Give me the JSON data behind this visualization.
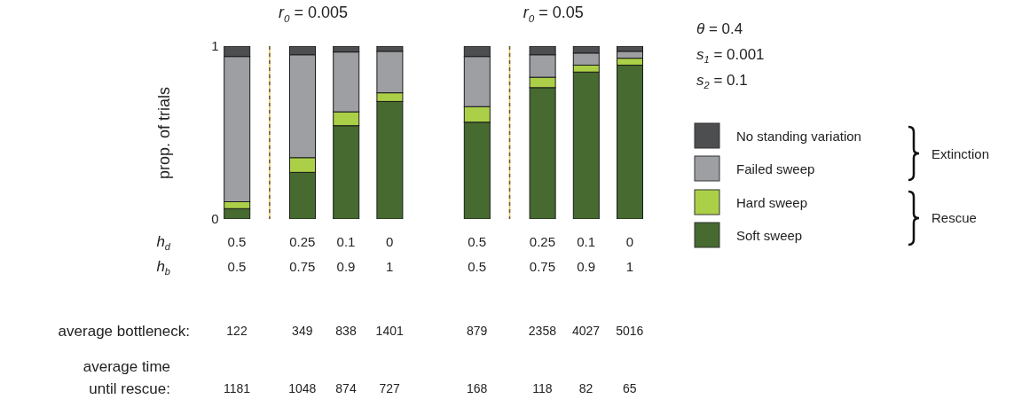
{
  "chart_data": {
    "type": "bar",
    "stacked": true,
    "ylabel": "prop. of trials",
    "ylim": [
      0,
      1
    ],
    "yticks": [
      0,
      1
    ],
    "legend": "right",
    "categories": [
      "0.5",
      null,
      null,
      "0.25",
      null,
      "0.1",
      null,
      "0",
      null,
      null,
      null,
      "0.5",
      null,
      null,
      "0.25",
      null,
      "0.1",
      null,
      "0"
    ],
    "series": [
      {
        "name": "Soft sweep",
        "color": "#466a2f",
        "values": [
          0.06,
          null,
          null,
          0.27,
          null,
          0.54,
          null,
          0.68,
          null,
          null,
          null,
          0.56,
          null,
          null,
          0.76,
          null,
          0.85,
          null,
          0.89
        ]
      },
      {
        "name": "Hard sweep",
        "color": "#abd048",
        "values": [
          0.04,
          null,
          null,
          0.085,
          null,
          0.08,
          null,
          0.05,
          null,
          null,
          null,
          0.09,
          null,
          null,
          0.06,
          null,
          0.04,
          null,
          0.04
        ]
      },
      {
        "name": "Failed sweep",
        "color": "#9d9fa2",
        "values": [
          0.84,
          null,
          null,
          0.595,
          null,
          0.346,
          null,
          0.24,
          null,
          null,
          null,
          0.29,
          null,
          null,
          0.13,
          null,
          0.07,
          null,
          0.04
        ]
      },
      {
        "name": "No standing variation",
        "color": "#4d4e50",
        "values": [
          0.06,
          null,
          null,
          0.05,
          null,
          0.034,
          null,
          0.03,
          null,
          null,
          null,
          0.06,
          null,
          null,
          0.05,
          null,
          0.04,
          null,
          0.03
        ]
      }
    ],
    "annotations": [
      "r$_{0}$ = 0.005",
      "r$_{0}$ = 0.05",
      "θ = 0.4",
      "s$_{1}$ = 0.001",
      "s$_{2}$ = 0.1",
      "Extinction",
      "Rescue",
      "h$_{d}$",
      "h$_{b}$",
      "0.5",
      "0.75",
      "0.9",
      "1",
      "0.5",
      "0.75",
      "0.9",
      "1",
      "average bottleneck:",
      "122",
      "349",
      "838",
      "1401",
      "879",
      "2358",
      "4027",
      "5016",
      "average time until rescue:",
      "1181",
      "1048",
      "874",
      "727",
      "168",
      "118",
      "82",
      "65"
    ]
  }
}
